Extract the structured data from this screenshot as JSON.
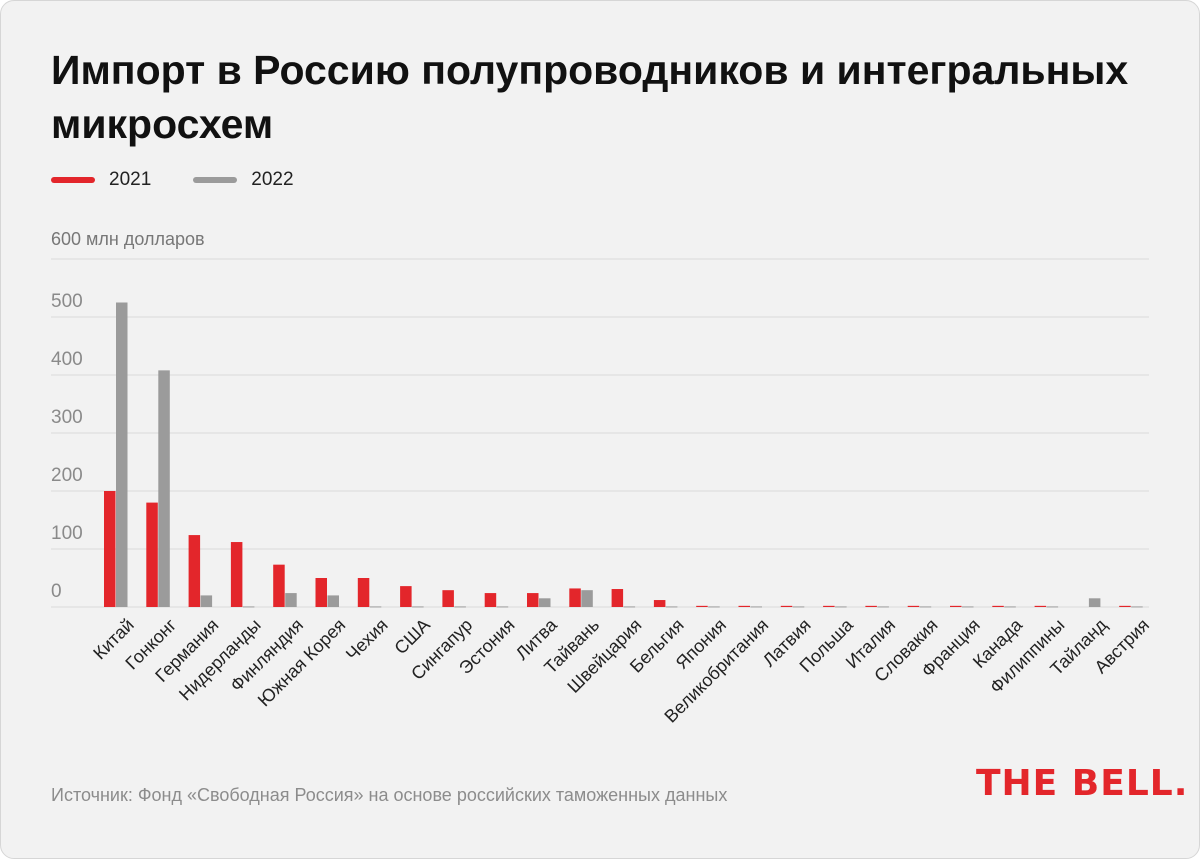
{
  "title": "Импорт в Россию полупроводников и интегральных микросхем",
  "legend": {
    "label_2021": "2021",
    "label_2022": "2022"
  },
  "unit_label": "600 млн долларов",
  "source": "Источник: Фонд «Свободная Россия» на основе российских таможенных данных",
  "logo": "THE BELL.",
  "colors": {
    "series_2021": "#e3262b",
    "series_2022": "#9b9b9b",
    "grid": "#d9d9d9",
    "axis_text": "#8a8a8a"
  },
  "chart_data": {
    "type": "bar",
    "title": "Импорт в Россию полупроводников и интегральных микросхем",
    "ylabel": "млн долларов",
    "ylim": [
      0,
      600
    ],
    "yticks": [
      0,
      100,
      200,
      300,
      400,
      500
    ],
    "top_tick_label": "600 млн долларов",
    "categories": [
      "Китай",
      "Гонконг",
      "Германия",
      "Нидерланды",
      "Финляндия",
      "Южная Корея",
      "Чехия",
      "США",
      "Сингапур",
      "Эстония",
      "Литва",
      "Тайвань",
      "Швейцария",
      "Бельгия",
      "Япония",
      "Великобритания",
      "Латвия",
      "Польша",
      "Италия",
      "Словакия",
      "Франция",
      "Канада",
      "Филиппины",
      "Тайланд",
      "Австрия"
    ],
    "series": [
      {
        "name": "2021",
        "values": [
          200,
          180,
          124,
          112,
          73,
          50,
          50,
          36,
          29,
          24,
          24,
          32,
          31,
          12,
          2,
          2,
          2,
          2,
          2,
          2,
          2,
          2,
          2,
          0,
          2
        ]
      },
      {
        "name": "2022",
        "values": [
          525,
          408,
          20,
          1,
          24,
          20,
          1,
          1,
          1,
          1,
          15,
          29,
          1,
          1,
          1,
          1,
          1,
          1,
          1,
          1,
          1,
          1,
          1,
          15,
          1
        ]
      }
    ]
  }
}
